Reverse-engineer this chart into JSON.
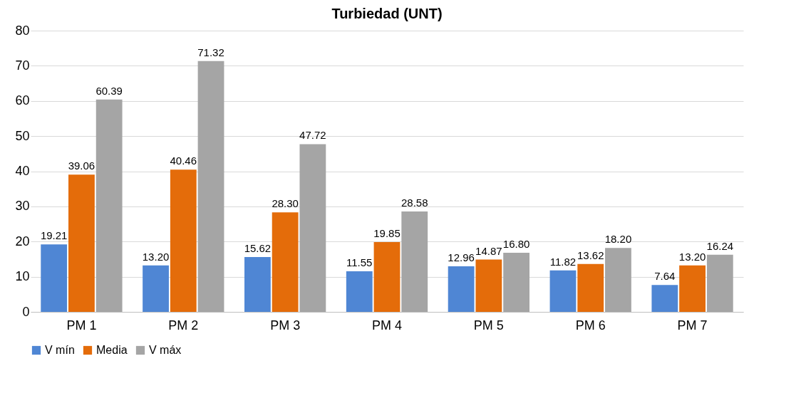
{
  "chart_data": {
    "type": "bar",
    "title": "Turbiedad (UNT)",
    "categories": [
      "PM 1",
      "PM 2",
      "PM 3",
      "PM 4",
      "PM 5",
      "PM 6",
      "PM 7"
    ],
    "series": [
      {
        "name": "V mín",
        "color": "#4f86d4",
        "values": [
          19.21,
          13.2,
          15.62,
          11.55,
          12.96,
          11.82,
          7.64
        ],
        "value_labels": [
          "19.21",
          "13.20",
          "15.62",
          "11.55",
          "12.96",
          "11.82",
          "7.64"
        ]
      },
      {
        "name": "Media",
        "color": "#e46c0a",
        "values": [
          39.06,
          40.46,
          28.3,
          19.85,
          14.87,
          13.62,
          13.2
        ],
        "value_labels": [
          "39.06",
          "40.46",
          "28.30",
          "19.85",
          "14.87",
          "13.62",
          "13.20"
        ]
      },
      {
        "name": "V máx",
        "color": "#a5a5a5",
        "values": [
          60.39,
          71.32,
          47.72,
          28.58,
          16.8,
          18.2,
          16.24
        ],
        "value_labels": [
          "60.39",
          "71.32",
          "47.72",
          "28.58",
          "16.80",
          "18.20",
          "16.24"
        ]
      }
    ],
    "ylim": [
      0,
      80
    ],
    "yticks": [
      0,
      10,
      20,
      30,
      40,
      50,
      60,
      70,
      80
    ],
    "grid": "y",
    "legend": "bottom"
  }
}
